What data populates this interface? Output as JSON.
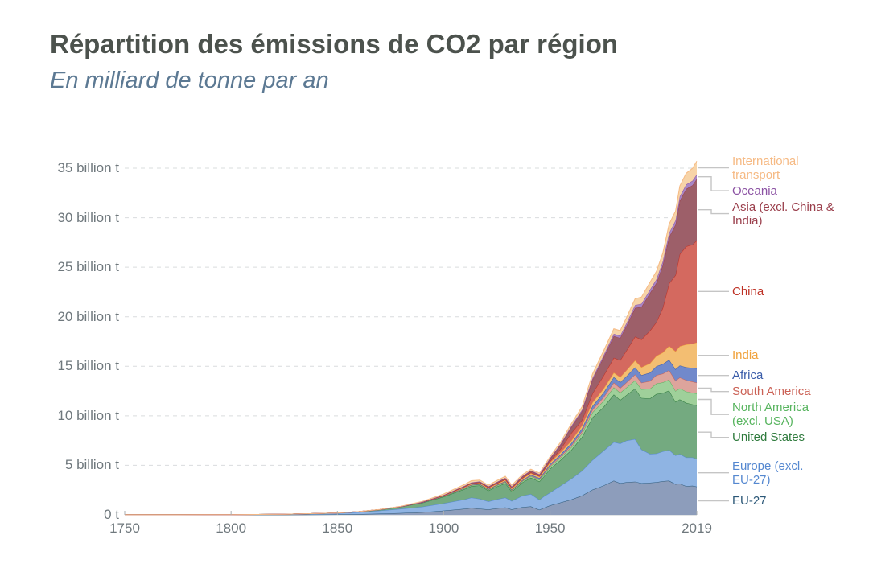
{
  "header": {
    "title": "Répartition des émissions de CO2 par région",
    "subtitle": "En milliard de tonne par an"
  },
  "chart_data": {
    "type": "area",
    "stacked": true,
    "title": "Répartition des émissions de CO2 par région",
    "subtitle": "En milliard de tonne par an",
    "unit": "billion tonnes of CO2 per year",
    "xlim": [
      1750,
      2019
    ],
    "ylim": [
      0,
      37
    ],
    "grid": "horizontal-dashed",
    "legend_position": "right",
    "x_ticks": [
      {
        "value": 1750,
        "label": "1750"
      },
      {
        "value": 1800,
        "label": "1800"
      },
      {
        "value": 1850,
        "label": "1850"
      },
      {
        "value": 1900,
        "label": "1900"
      },
      {
        "value": 1950,
        "label": "1950"
      },
      {
        "value": 2019,
        "label": "2019"
      }
    ],
    "y_ticks": [
      {
        "value": 0,
        "label": "0 t"
      },
      {
        "value": 5,
        "label": "5 billion t"
      },
      {
        "value": 10,
        "label": "10 billion t"
      },
      {
        "value": 15,
        "label": "15 billion t"
      },
      {
        "value": 20,
        "label": "20 billion t"
      },
      {
        "value": 25,
        "label": "25 billion t"
      },
      {
        "value": 30,
        "label": "30 billion t"
      },
      {
        "value": 35,
        "label": "35 billion t"
      }
    ],
    "years": [
      1750,
      1775,
      1800,
      1825,
      1850,
      1860,
      1870,
      1880,
      1890,
      1900,
      1910,
      1913,
      1917,
      1921,
      1925,
      1929,
      1932,
      1937,
      1941,
      1945,
      1947,
      1950,
      1955,
      1960,
      1965,
      1970,
      1975,
      1980,
      1983,
      1986,
      1990,
      1993,
      1997,
      2000,
      2003,
      2006,
      2009,
      2011,
      2014,
      2017,
      2019
    ],
    "series": [
      {
        "name": "EU-27",
        "slug": "eu-27",
        "legend_lines": [
          "EU-27"
        ],
        "color": "#2C5878",
        "fill": "#8D9DBB",
        "values": [
          0.002,
          0.003,
          0.006,
          0.012,
          0.04,
          0.07,
          0.12,
          0.19,
          0.27,
          0.42,
          0.62,
          0.7,
          0.62,
          0.55,
          0.66,
          0.75,
          0.55,
          0.78,
          0.85,
          0.52,
          0.7,
          0.95,
          1.25,
          1.55,
          1.95,
          2.55,
          2.95,
          3.45,
          3.2,
          3.3,
          3.35,
          3.2,
          3.25,
          3.3,
          3.4,
          3.45,
          3.1,
          3.15,
          2.9,
          2.95,
          2.85
        ]
      },
      {
        "name": "Europe (excl. EU-27)",
        "slug": "europe-excl-eu-27",
        "legend_lines": [
          "Europe (excl.",
          "EU-27)"
        ],
        "color": "#5588D0",
        "fill": "#8FB4E3",
        "values": [
          0.006,
          0.009,
          0.02,
          0.04,
          0.13,
          0.2,
          0.3,
          0.42,
          0.55,
          0.75,
          0.95,
          1.05,
          1.0,
          0.8,
          0.9,
          1.0,
          0.85,
          1.15,
          1.25,
          1.0,
          1.15,
          1.3,
          1.7,
          2.1,
          2.5,
          3.0,
          3.5,
          3.9,
          4.0,
          4.2,
          4.3,
          3.4,
          2.9,
          2.9,
          3.0,
          3.1,
          2.9,
          3.0,
          2.9,
          2.85,
          2.8
        ]
      },
      {
        "name": "United States",
        "slug": "united-states",
        "legend_lines": [
          "United States"
        ],
        "color": "#2E7A3C",
        "fill": "#74AA80",
        "values": [
          0,
          0,
          0.0003,
          0.002,
          0.02,
          0.05,
          0.1,
          0.21,
          0.4,
          0.66,
          1.06,
          1.15,
          1.35,
          1.1,
          1.3,
          1.45,
          0.95,
          1.35,
          1.65,
          1.85,
          2.0,
          2.4,
          2.6,
          2.9,
          3.4,
          4.3,
          4.4,
          4.8,
          4.4,
          4.6,
          5.1,
          5.2,
          5.6,
          6.0,
          5.9,
          6.0,
          5.4,
          5.5,
          5.5,
          5.35,
          5.4
        ]
      },
      {
        "name": "North America (excl. USA)",
        "slug": "north-america-excl-usa",
        "legend_lines": [
          "North America",
          "(excl. USA)"
        ],
        "color": "#57B45E",
        "fill": "#9FD09A",
        "values": [
          0,
          0,
          0,
          0.0005,
          0.001,
          0.002,
          0.005,
          0.01,
          0.02,
          0.04,
          0.08,
          0.085,
          0.09,
          0.09,
          0.1,
          0.12,
          0.1,
          0.12,
          0.15,
          0.17,
          0.19,
          0.21,
          0.24,
          0.27,
          0.35,
          0.5,
          0.6,
          0.72,
          0.72,
          0.76,
          0.82,
          0.88,
          0.98,
          1.05,
          1.07,
          1.1,
          1.1,
          1.12,
          1.15,
          1.18,
          1.2
        ]
      },
      {
        "name": "South America",
        "slug": "south-america",
        "legend_lines": [
          "South America"
        ],
        "color": "#CB6155",
        "fill": "#DDA49C",
        "values": [
          0,
          0,
          0,
          0,
          0.0005,
          0.001,
          0.002,
          0.004,
          0.007,
          0.01,
          0.02,
          0.025,
          0.03,
          0.03,
          0.035,
          0.04,
          0.04,
          0.05,
          0.06,
          0.07,
          0.09,
          0.11,
          0.14,
          0.18,
          0.23,
          0.3,
          0.38,
          0.48,
          0.48,
          0.52,
          0.6,
          0.66,
          0.78,
          0.85,
          0.88,
          0.95,
          1.05,
          1.1,
          1.15,
          1.12,
          1.1
        ]
      },
      {
        "name": "Africa",
        "slug": "africa",
        "legend_lines": [
          "Africa"
        ],
        "color": "#3A5CA9",
        "fill": "#7189CB",
        "values": [
          0,
          0,
          0,
          0,
          0.0005,
          0.001,
          0.002,
          0.004,
          0.007,
          0.01,
          0.02,
          0.025,
          0.03,
          0.035,
          0.04,
          0.045,
          0.05,
          0.07,
          0.09,
          0.1,
          0.12,
          0.14,
          0.18,
          0.23,
          0.28,
          0.35,
          0.45,
          0.55,
          0.58,
          0.63,
          0.72,
          0.76,
          0.84,
          0.9,
          0.98,
          1.05,
          1.15,
          1.2,
          1.3,
          1.38,
          1.45
        ]
      },
      {
        "name": "India",
        "slug": "india",
        "legend_lines": [
          "India"
        ],
        "color": "#F0A13A",
        "fill": "#F3BE72",
        "values": [
          0,
          0,
          0,
          0,
          0.001,
          0.002,
          0.003,
          0.005,
          0.02,
          0.05,
          0.08,
          0.09,
          0.1,
          0.1,
          0.1,
          0.11,
          0.11,
          0.13,
          0.14,
          0.15,
          0.16,
          0.18,
          0.21,
          0.25,
          0.3,
          0.35,
          0.4,
          0.45,
          0.52,
          0.6,
          0.7,
          0.8,
          0.95,
          1.05,
          1.15,
          1.4,
          1.8,
          1.95,
          2.3,
          2.45,
          2.6
        ]
      },
      {
        "name": "China",
        "slug": "china",
        "legend_lines": [
          "China"
        ],
        "color": "#BE3125",
        "fill": "#D4695F",
        "values": [
          0,
          0,
          0,
          0,
          0,
          0,
          0.001,
          0.002,
          0.01,
          0.02,
          0.03,
          0.035,
          0.04,
          0.045,
          0.05,
          0.06,
          0.06,
          0.08,
          0.09,
          0.05,
          0.08,
          0.12,
          0.35,
          0.78,
          0.55,
          0.92,
          1.3,
          1.5,
          1.7,
          2.0,
          2.4,
          2.8,
          3.3,
          3.4,
          4.5,
          6.3,
          7.7,
          9.3,
          9.9,
          10.0,
          10.3
        ]
      },
      {
        "name": "Asia (excl. China & India)",
        "slug": "asia-excl-china-india",
        "legend_lines": [
          "Asia (excl. China &",
          "India)"
        ],
        "color": "#9A3E4B",
        "fill": "#9D5F69",
        "values": [
          0,
          0,
          0,
          0,
          0.0005,
          0.001,
          0.002,
          0.005,
          0.02,
          0.04,
          0.08,
          0.09,
          0.1,
          0.1,
          0.11,
          0.13,
          0.13,
          0.15,
          0.15,
          0.13,
          0.18,
          0.25,
          0.4,
          0.6,
          0.9,
          1.4,
          1.85,
          2.2,
          2.25,
          2.5,
          2.9,
          3.3,
          3.8,
          3.95,
          4.3,
          4.7,
          5.1,
          5.4,
          5.8,
          6.0,
          6.2
        ]
      },
      {
        "name": "Oceania",
        "slug": "oceania",
        "legend_lines": [
          "Oceania"
        ],
        "color": "#8C53A4",
        "fill": "#A886C5",
        "values": [
          0,
          0,
          0.0001,
          0.0005,
          0.001,
          0.002,
          0.004,
          0.006,
          0.008,
          0.01,
          0.015,
          0.018,
          0.02,
          0.022,
          0.025,
          0.03,
          0.03,
          0.04,
          0.05,
          0.06,
          0.06,
          0.07,
          0.09,
          0.11,
          0.13,
          0.16,
          0.19,
          0.22,
          0.23,
          0.26,
          0.29,
          0.31,
          0.34,
          0.37,
          0.39,
          0.4,
          0.42,
          0.43,
          0.44,
          0.45,
          0.46
        ]
      },
      {
        "name": "International transport",
        "slug": "international-transport",
        "legend_lines": [
          "International",
          "transport"
        ],
        "color": "#F6BA84",
        "fill": "#F7D4A8",
        "values": [
          0,
          0,
          0,
          0,
          0.001,
          0.003,
          0.008,
          0.02,
          0.05,
          0.1,
          0.15,
          0.18,
          0.14,
          0.13,
          0.15,
          0.16,
          0.13,
          0.15,
          0.13,
          0.12,
          0.14,
          0.16,
          0.2,
          0.24,
          0.32,
          0.42,
          0.46,
          0.52,
          0.52,
          0.57,
          0.63,
          0.68,
          0.75,
          0.8,
          0.85,
          0.9,
          0.95,
          1.05,
          1.15,
          1.25,
          1.35
        ]
      }
    ],
    "style": {
      "grid_color": "#D9DCDE",
      "axis_color": "#C6CBCE",
      "tick_color": "#A9AEB1",
      "leader_line_color": "#C5C5C5",
      "title_color": "#4C524D",
      "subtitle_color": "#5C7993",
      "tick_label_color": "#6F787D"
    }
  }
}
